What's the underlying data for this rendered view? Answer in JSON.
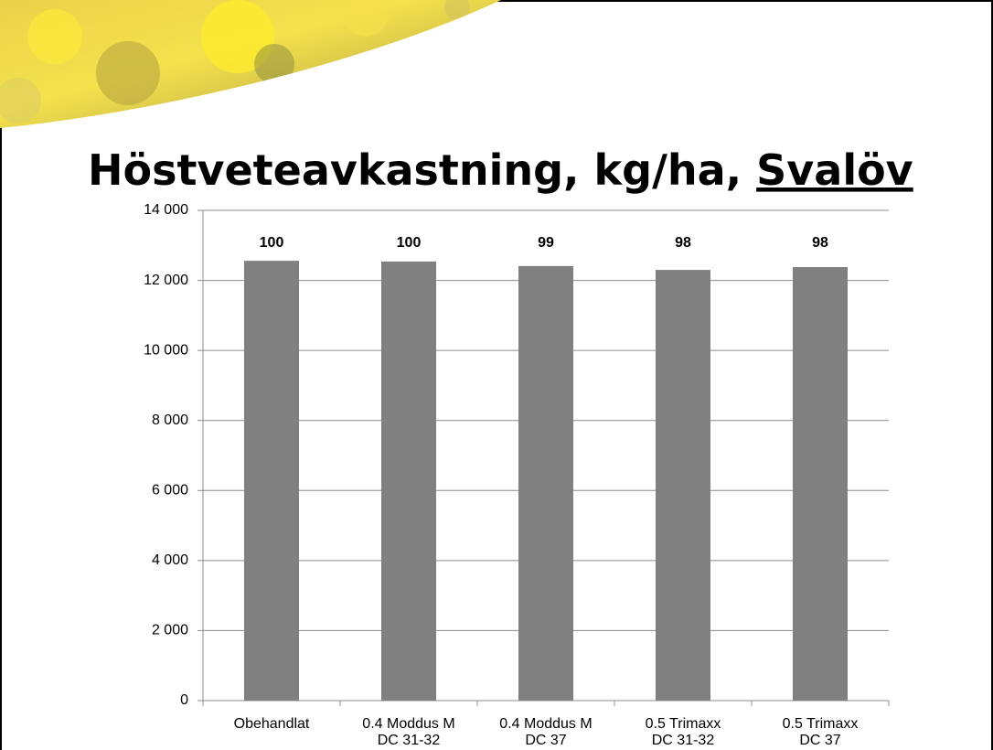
{
  "chart_data": {
    "type": "bar",
    "title": "Höstveteavkastning, kg/ha,",
    "title_emphasis": "Svalöv",
    "categories": [
      [
        "Obehandlat"
      ],
      [
        "0.4 Moddus M",
        "DC 31-32"
      ],
      [
        "0.4 Moddus M",
        "DC 37"
      ],
      [
        "0.5 Trimaxx",
        "DC 31-32"
      ],
      [
        "0.5 Trimaxx",
        "DC 37"
      ]
    ],
    "values": [
      12560,
      12540,
      12410,
      12300,
      12380
    ],
    "relative_index": [
      100,
      100,
      99,
      98,
      98
    ],
    "color": "#808080",
    "ylim": [
      0,
      14000
    ],
    "yticks": [
      0,
      {
        "value": 2000,
        "label": "2 000"
      },
      {
        "value": 4000,
        "label": "4 000"
      },
      {
        "value": 6000,
        "label": "6 000"
      },
      {
        "value": 8000,
        "label": "8 000"
      },
      {
        "value": 10000,
        "label": "10 000"
      },
      {
        "value": 12000,
        "label": "12 000"
      },
      {
        "value": 14000,
        "label": "14 000"
      }
    ],
    "grid": true
  }
}
